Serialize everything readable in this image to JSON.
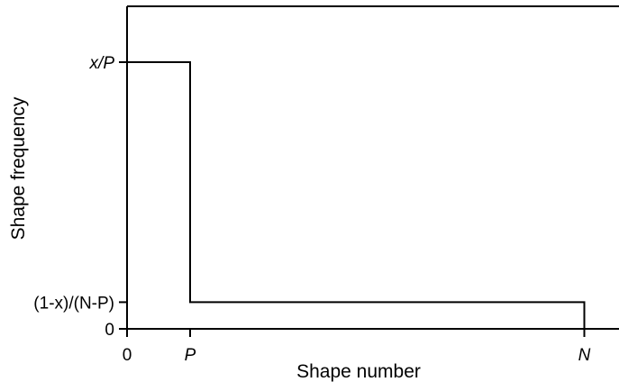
{
  "chart_data": {
    "type": "line",
    "xlabel": "Shape number",
    "ylabel": "Shape frequency",
    "x_ticks": [
      {
        "label": "0",
        "italic": false,
        "pos": 0
      },
      {
        "label": "P",
        "italic": true,
        "pos": 0.16
      },
      {
        "label": "N",
        "italic": true,
        "pos": 1.16
      }
    ],
    "y_ticks": [
      {
        "label": "0",
        "italic": false,
        "pos": 0
      },
      {
        "label": "(1-x)/(N-P)",
        "italic": false,
        "pos": 0.1
      },
      {
        "label": "x/P",
        "italic": true,
        "pos": 1.0
      }
    ],
    "series": [
      {
        "points": [
          [
            0,
            1.0
          ],
          [
            0.16,
            1.0
          ],
          [
            0.16,
            0.1
          ],
          [
            1.16,
            0.1
          ],
          [
            1.16,
            0
          ]
        ]
      }
    ],
    "xlim": [
      0,
      1.2
    ],
    "ylim": [
      0,
      1.21
    ],
    "grid": false,
    "frame": "left-top-bottom",
    "colors": {
      "line": "#000000",
      "axis": "#000000"
    }
  }
}
